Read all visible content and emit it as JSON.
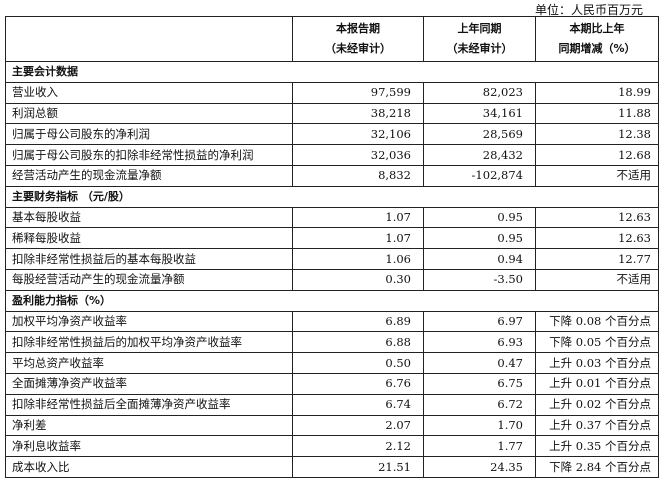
{
  "unit": "单位：人民币百万元",
  "header": {
    "col1": [
      "本报告期",
      "（未经审计）"
    ],
    "col2": [
      "上年同期",
      "（未经审计）"
    ],
    "col3": [
      "本期比上年",
      "同期增减（%）"
    ]
  },
  "sections": [
    {
      "title": "主要会计数据",
      "rows": [
        {
          "label": "营业收入",
          "current": "97,599",
          "prior": "82,023",
          "change": "18.99"
        },
        {
          "label": "利润总额",
          "current": "38,218",
          "prior": "34,161",
          "change": "11.88"
        },
        {
          "label": "归属于母公司股东的净利润",
          "current": "32,106",
          "prior": "28,569",
          "change": "12.38"
        },
        {
          "label": "归属于母公司股东的扣除非经常性损益的净利润",
          "current": "32,036",
          "prior": "28,432",
          "change": "12.68"
        },
        {
          "label": "经营活动产生的现金流量净额",
          "current": "8,832",
          "prior": "-102,874",
          "change": "不适用"
        }
      ]
    },
    {
      "title": "主要财务指标 （元/股）",
      "rows": [
        {
          "label": "基本每股收益",
          "current": "1.07",
          "prior": "0.95",
          "change": "12.63"
        },
        {
          "label": "稀释每股收益",
          "current": "1.07",
          "prior": "0.95",
          "change": "12.63"
        },
        {
          "label": "扣除非经常性损益后的基本每股收益",
          "current": "1.06",
          "prior": "0.94",
          "change": "12.77"
        },
        {
          "label": "每股经营活动产生的现金流量净额",
          "current": "0.30",
          "prior": "-3.50",
          "change": "不适用"
        }
      ]
    },
    {
      "title": "盈利能力指标（%）",
      "rows": [
        {
          "label": "加权平均净资产收益率",
          "current": "6.89",
          "prior": "6.97",
          "change": "下降 0.08 个百分点"
        },
        {
          "label": "扣除非经常性损益后的加权平均净资产收益率",
          "current": "6.88",
          "prior": "6.93",
          "change": "下降 0.05 个百分点"
        },
        {
          "label": "平均总资产收益率",
          "current": "0.50",
          "prior": "0.47",
          "change": "上升 0.03 个百分点"
        },
        {
          "label": "全面摊薄净资产收益率",
          "current": "6.76",
          "prior": "6.75",
          "change": "上升 0.01 个百分点"
        },
        {
          "label": "扣除非经常性损益后全面摊薄净资产收益率",
          "current": "6.74",
          "prior": "6.72",
          "change": "上升 0.02 个百分点"
        },
        {
          "label": "净利差",
          "current": "2.07",
          "prior": "1.70",
          "change": "上升 0.37 个百分点"
        },
        {
          "label": "净利息收益率",
          "current": "2.12",
          "prior": "1.77",
          "change": "上升 0.35 个百分点"
        },
        {
          "label": "成本收入比",
          "current": "21.51",
          "prior": "24.35",
          "change": "下降 2.84 个百分点"
        }
      ]
    }
  ]
}
